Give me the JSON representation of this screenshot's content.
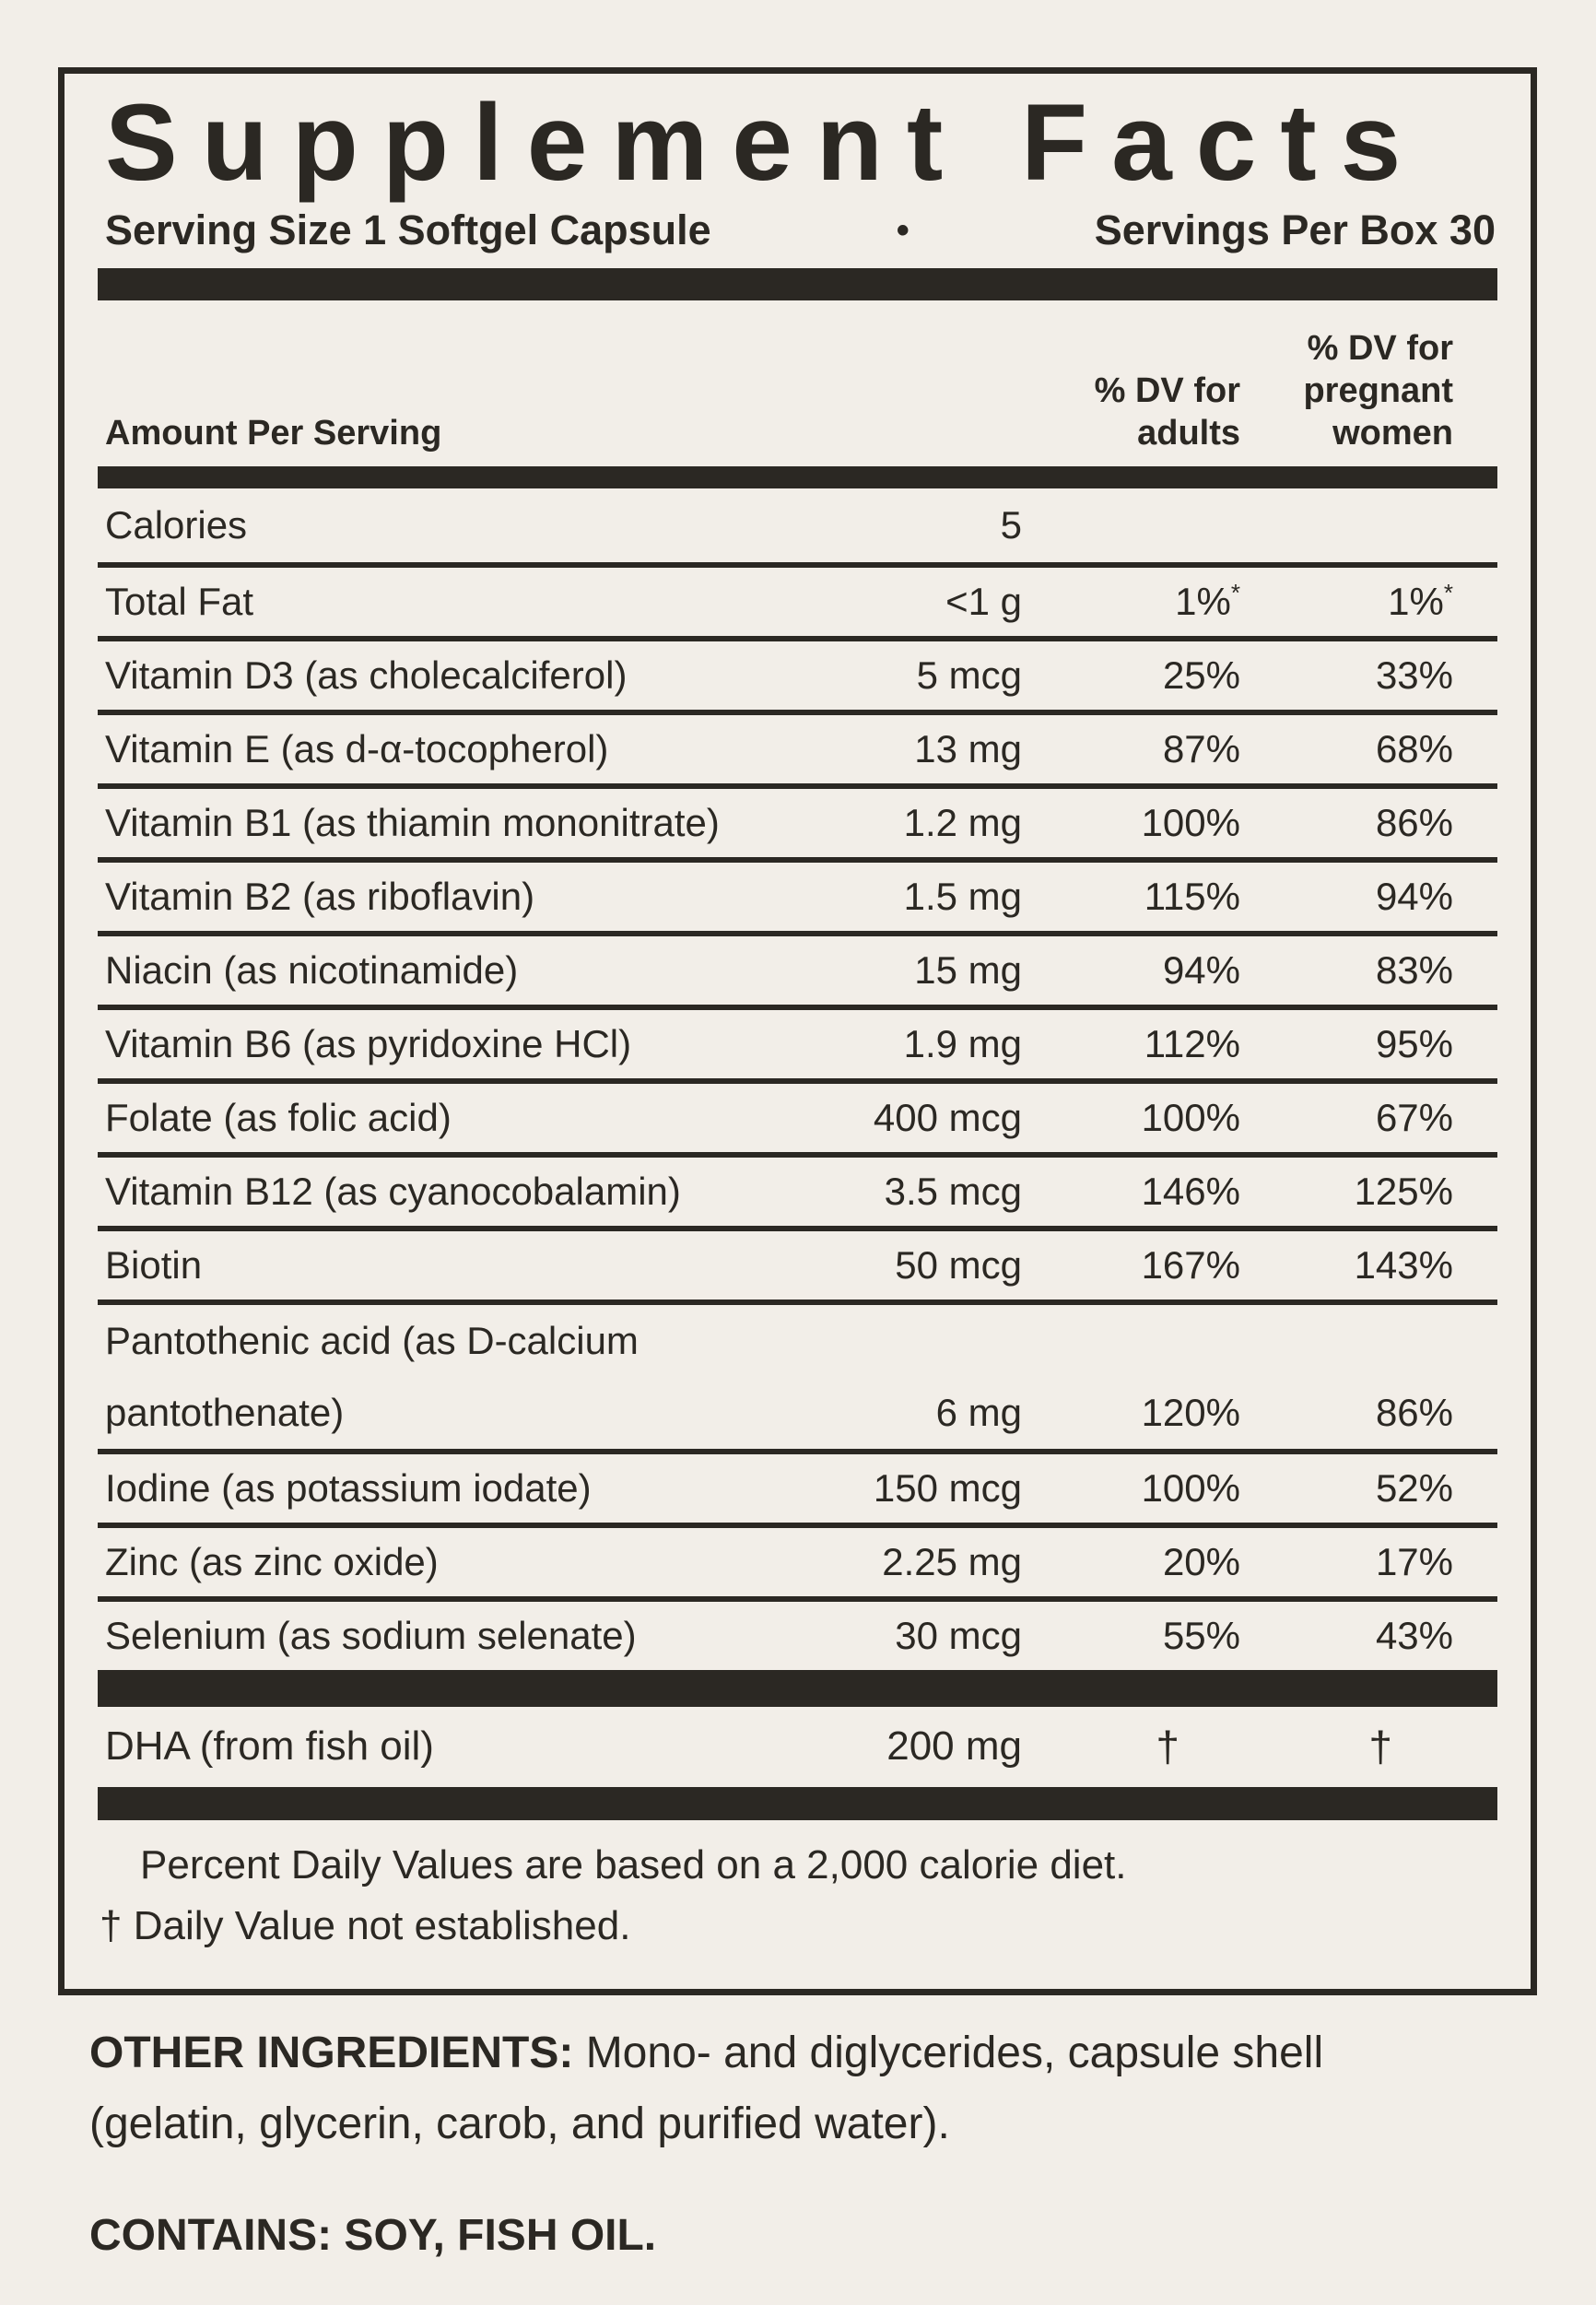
{
  "colors": {
    "ink": "#2b2823",
    "background": "#f2eee8"
  },
  "header": {
    "title": "Supplement Facts",
    "serving_size": "Serving Size 1 Softgel Capsule",
    "bullet": "•",
    "servings_per_box": "Servings Per Box 30"
  },
  "table": {
    "amount_header": "Amount Per Serving",
    "dv_adults_header": "% DV for\nadults",
    "dv_pregnant_header": "% DV for\npregnant\nwomen",
    "rows": [
      {
        "name": "Calories",
        "amount": "5",
        "dv_adults": "",
        "dv_pregnant": ""
      },
      {
        "name": "Total Fat",
        "amount": "<1 g",
        "dv_adults": "1%*",
        "dv_pregnant": "1%*"
      },
      {
        "name": "Vitamin D3 (as cholecalciferol)",
        "amount": "5 mcg",
        "dv_adults": "25%",
        "dv_pregnant": "33%"
      },
      {
        "name": "Vitamin E (as d-α-tocopherol)",
        "amount": "13 mg",
        "dv_adults": "87%",
        "dv_pregnant": "68%"
      },
      {
        "name": "Vitamin B1 (as thiamin mononitrate)",
        "amount": "1.2 mg",
        "dv_adults": "100%",
        "dv_pregnant": "86%"
      },
      {
        "name": "Vitamin B2 (as riboflavin)",
        "amount": "1.5 mg",
        "dv_adults": "115%",
        "dv_pregnant": "94%"
      },
      {
        "name": "Niacin (as nicotinamide)",
        "amount": "15 mg",
        "dv_adults": "94%",
        "dv_pregnant": "83%"
      },
      {
        "name": "Vitamin B6 (as pyridoxine HCl)",
        "amount": "1.9 mg",
        "dv_adults": "112%",
        "dv_pregnant": "95%"
      },
      {
        "name": "Folate (as folic acid)",
        "amount": "400 mcg",
        "dv_adults": "100%",
        "dv_pregnant": "67%"
      },
      {
        "name": "Vitamin B12 (as cyanocobalamin)",
        "amount": "3.5 mcg",
        "dv_adults": "146%",
        "dv_pregnant": "125%"
      },
      {
        "name": "Biotin",
        "amount": "50 mcg",
        "dv_adults": "167%",
        "dv_pregnant": "143%"
      },
      {
        "name_lines": [
          "Pantothenic acid (as D-calcium",
          "pantothenate)"
        ],
        "amount": "6 mg",
        "dv_adults": "120%",
        "dv_pregnant": "86%"
      },
      {
        "name": "Iodine (as potassium iodate)",
        "amount": "150 mcg",
        "dv_adults": "100%",
        "dv_pregnant": "52%"
      },
      {
        "name": "Zinc (as zinc oxide)",
        "amount": "2.25 mg",
        "dv_adults": "20%",
        "dv_pregnant": "17%"
      },
      {
        "name": "Selenium (as sodium selenate)",
        "amount": "30 mcg",
        "dv_adults": "55%",
        "dv_pregnant": "43%"
      }
    ],
    "dha_rows": [
      {
        "name": "DHA (from fish oil)",
        "amount": "200 mg",
        "dv_adults": "†",
        "dv_pregnant": "†"
      }
    ]
  },
  "footnotes": {
    "percent_dv": "Percent Daily Values are based on a 2,000 calorie diet.",
    "dagger": "† Daily Value not established."
  },
  "other_ingredients": {
    "label": "OTHER INGREDIENTS:",
    "text": " Mono- and diglycerides, capsule shell (gelatin, glycerin, carob, and purified water)."
  },
  "contains": "CONTAINS: SOY, FISH OIL."
}
